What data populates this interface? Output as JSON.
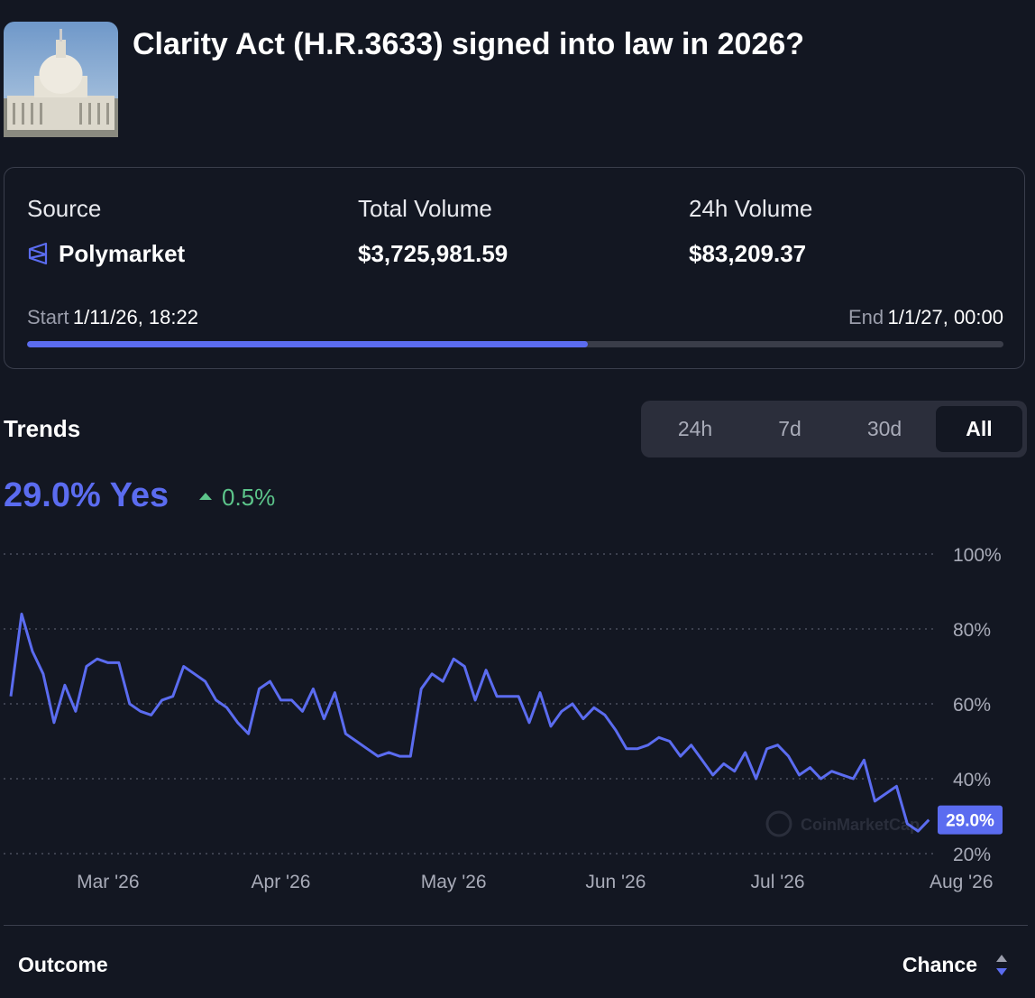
{
  "header": {
    "title": "Clarity Act (H.R.3633) signed into law in 2026?"
  },
  "stats": {
    "source_label": "Source",
    "source": "Polymarket",
    "total_volume_label": "Total Volume",
    "total_volume": "$3,725,981.59",
    "volume_24h_label": "24h Volume",
    "volume_24h": "$83,209.37",
    "start_label": "Start",
    "start": "1/11/26, 18:22",
    "end_label": "End",
    "end": "1/1/27, 00:00",
    "progress": 57.4
  },
  "trends": {
    "title": "Trends",
    "ranges": [
      "24h",
      "7d",
      "30d",
      "All"
    ],
    "active_range": 3,
    "headline": "29.0% Yes",
    "change": "0.5%"
  },
  "chart_data": {
    "type": "line",
    "color": "#5b6cf0",
    "grid": true,
    "categories": [
      null,
      null,
      null,
      null,
      null,
      null,
      null,
      null,
      null,
      "Mar '26",
      null,
      null,
      null,
      null,
      null,
      null,
      null,
      null,
      null,
      null,
      null,
      null,
      null,
      null,
      null,
      "Apr '26",
      null,
      null,
      null,
      null,
      null,
      null,
      null,
      null,
      null,
      null,
      null,
      null,
      null,
      null,
      null,
      "May '26",
      null,
      null,
      null,
      null,
      null,
      null,
      null,
      null,
      null,
      null,
      null,
      null,
      null,
      null,
      "Jun '26",
      null,
      null,
      null,
      null,
      null,
      null,
      null,
      null,
      null,
      null,
      null,
      null,
      null,
      null,
      "Jul '26",
      null,
      null,
      null,
      null,
      null,
      null,
      null,
      null,
      null,
      null,
      null,
      null,
      null,
      null,
      null,
      null,
      "Aug '26"
    ],
    "values": [
      62,
      84,
      74,
      68,
      55,
      65,
      58,
      70,
      72,
      71,
      71,
      60,
      58,
      57,
      61,
      62,
      70,
      68,
      66,
      61,
      59,
      55,
      52,
      64,
      66,
      61,
      61,
      58,
      64,
      56,
      63,
      52,
      50,
      48,
      46,
      47,
      46,
      46,
      64,
      68,
      66,
      72,
      70,
      61,
      69,
      62,
      62,
      62,
      55,
      63,
      54,
      58,
      60,
      56,
      59,
      57,
      53,
      48,
      48,
      49,
      51,
      50,
      46,
      49,
      45,
      41,
      44,
      42,
      47,
      40,
      48,
      49,
      46,
      41,
      43,
      40,
      42,
      41,
      40,
      45,
      34,
      36,
      38,
      28,
      26,
      29.0,
      null,
      null,
      null
    ],
    "last_value_label": "29.0%",
    "ylim": [
      20,
      100
    ],
    "yticks": [
      {
        "value": 20,
        "label": "20%"
      },
      {
        "value": 40,
        "label": "40%"
      },
      {
        "value": 60,
        "label": "60%"
      },
      {
        "value": 80,
        "label": "80%"
      },
      {
        "value": 100,
        "label": "100%"
      }
    ],
    "watermark": "CoinMarketCap"
  },
  "footer": {
    "outcome": "Outcome",
    "chance": "Chance"
  }
}
